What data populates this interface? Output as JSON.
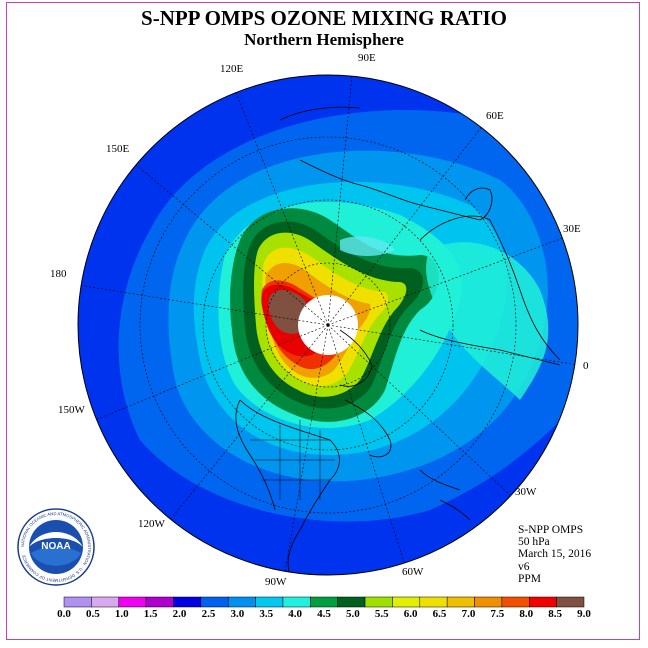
{
  "header": {
    "title": "S-NPP OMPS OZONE MIXING RATIO",
    "subtitle": "Northern Hemisphere"
  },
  "map": {
    "projection": "polar stereographic",
    "hemisphere": "north",
    "longitude_labels": [
      "90E",
      "60E",
      "30E",
      "0",
      "30W",
      "60W",
      "90W",
      "120W",
      "150W",
      "180",
      "150E",
      "120E"
    ],
    "colors": {
      "ocean_blue": "#0033ee",
      "land_outline": "#000000",
      "pole_blank": "#ffffff"
    }
  },
  "info": {
    "instrument": "S-NPP OMPS",
    "level": "50 hPa",
    "date": "March 15, 2016",
    "version": "v6",
    "units": "PPM"
  },
  "colorbar": {
    "ticks": [
      "0.0",
      "0.5",
      "1.0",
      "1.5",
      "2.0",
      "2.5",
      "3.0",
      "3.5",
      "4.0",
      "4.5",
      "5.0",
      "5.5",
      "6.0",
      "6.5",
      "7.0",
      "7.5",
      "8.0",
      "8.5",
      "9.0"
    ],
    "colors": [
      "#b090f0",
      "#d8a8f0",
      "#f000f0",
      "#b000d0",
      "#0000e0",
      "#0060f0",
      "#0090f0",
      "#00c8f0",
      "#20f0e0",
      "#00a040",
      "#006020",
      "#a0e000",
      "#e0f000",
      "#f0e000",
      "#f0c000",
      "#f09000",
      "#f05000",
      "#f00000",
      "#805040"
    ]
  },
  "logo": {
    "text": "NOAA",
    "ring_text": "NATIONAL OCEANIC AND ATMOSPHERIC ADMINISTRATION · U.S. DEPARTMENT OF COMMERCE"
  }
}
